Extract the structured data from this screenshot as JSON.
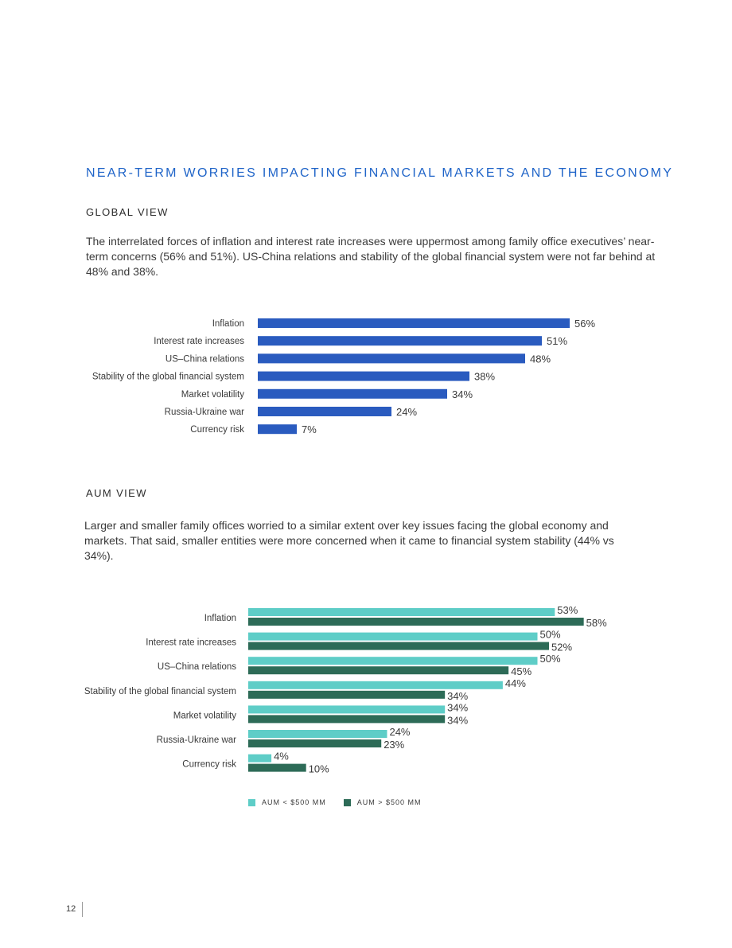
{
  "title": "NEAR-TERM WORRIES IMPACTING FINANCIAL MARKETS AND THE ECONOMY",
  "global": {
    "heading": "GLOBAL VIEW",
    "paragraph": "The interrelated forces of inflation and interest rate increases were uppermost among family office executives’ near-term concerns (56% and 51%). US-China relations and stability of the global financial system were not far behind at 48% and 38%."
  },
  "aum": {
    "heading": "AUM VIEW",
    "paragraph": "Larger and smaller family offices worried to a similar extent over key issues facing the global economy and markets. That said, smaller entities were more concerned when it came to financial system stability (44% vs 34%).",
    "legend": [
      "AUM < $500 MM",
      "AUM > $500 MM"
    ]
  },
  "colors": {
    "title": "#1f64c8",
    "global_bar": "#2a5bbf",
    "aum_small": "#5ecdc7",
    "aum_large": "#2d6b57"
  },
  "page_number": "12",
  "chart_data": [
    {
      "type": "bar",
      "orientation": "horizontal",
      "categories": [
        "Inflation",
        "Interest rate increases",
        "US–China relations",
        "Stability of the global financial system",
        "Market volatility",
        "Russia-Ukraine war",
        "Currency risk"
      ],
      "values": [
        56,
        51,
        48,
        38,
        34,
        24,
        7
      ],
      "value_labels": [
        "56%",
        "51%",
        "48%",
        "38%",
        "34%",
        "24%",
        "7%"
      ]
    },
    {
      "type": "bar",
      "orientation": "horizontal",
      "categories": [
        "Inflation",
        "Interest rate increases",
        "US–China relations",
        "Stability of the global financial system",
        "Market volatility",
        "Russia-Ukraine war",
        "Currency risk"
      ],
      "series": [
        {
          "name": "AUM < $500 MM",
          "values": [
            53,
            50,
            50,
            44,
            34,
            24,
            4
          ],
          "value_labels": [
            "53%",
            "50%",
            "50%",
            "44%",
            "34%",
            "24%",
            "4%"
          ]
        },
        {
          "name": "AUM > $500 MM",
          "values": [
            58,
            52,
            45,
            34,
            34,
            23,
            10
          ],
          "value_labels": [
            "58%",
            "52%",
            "45%",
            "34%",
            "34%",
            "23%",
            "10%"
          ]
        }
      ],
      "legend_position": "bottom-left"
    }
  ]
}
